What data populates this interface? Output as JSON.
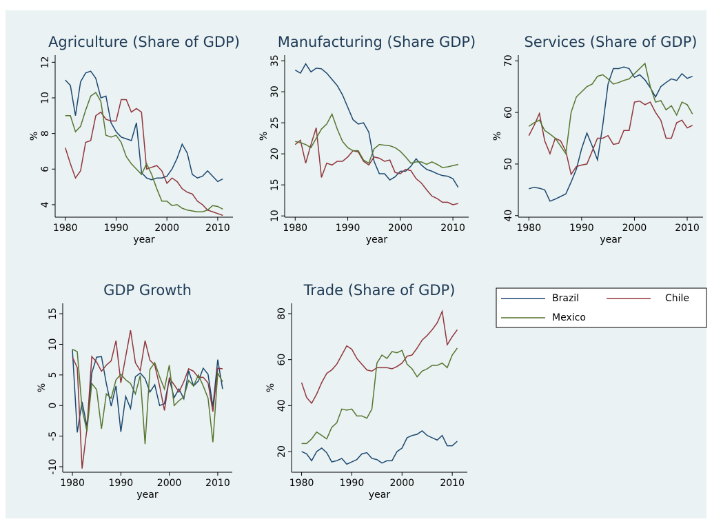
{
  "chart_data": [
    {
      "type": "line",
      "title": "Agriculture (Share of GDP)",
      "xlabel": "year",
      "ylabel": "%",
      "x": [
        1980,
        1981,
        1982,
        1983,
        1984,
        1985,
        1986,
        1987,
        1988,
        1989,
        1990,
        1991,
        1992,
        1993,
        1994,
        1995,
        1996,
        1997,
        1998,
        1999,
        2000,
        2001,
        2002,
        2003,
        2004,
        2005,
        2006,
        2007,
        2008,
        2009,
        2010,
        2011
      ],
      "xlim": [
        1978,
        2013
      ],
      "xticks": [
        1980,
        1990,
        2000,
        2010
      ],
      "ylim": [
        3.3,
        12.4
      ],
      "yticks": [
        4,
        6,
        8,
        10,
        12
      ],
      "series": [
        {
          "name": "Brazil",
          "color": "#1a476f",
          "values": [
            11.0,
            10.7,
            9.0,
            10.9,
            11.4,
            11.5,
            11.1,
            10.0,
            10.1,
            8.6,
            8.1,
            7.8,
            7.7,
            7.6,
            8.6,
            5.8,
            5.5,
            5.4,
            5.5,
            5.5,
            5.6,
            6.0,
            6.6,
            7.4,
            6.9,
            5.7,
            5.5,
            5.6,
            5.9,
            5.6,
            5.3,
            5.45
          ]
        },
        {
          "name": "Chile",
          "color": "#90353b",
          "values": [
            7.2,
            6.3,
            5.5,
            5.9,
            7.5,
            7.6,
            9.0,
            9.2,
            8.8,
            8.7,
            8.7,
            9.9,
            9.9,
            9.2,
            9.4,
            9.2,
            6.0,
            6.1,
            6.2,
            5.9,
            5.2,
            5.5,
            5.3,
            4.9,
            4.7,
            4.6,
            4.2,
            4.0,
            3.7,
            3.6,
            3.5,
            3.4
          ]
        },
        {
          "name": "Mexico",
          "color": "#55752f",
          "values": [
            9.0,
            9.0,
            8.1,
            8.4,
            9.3,
            10.1,
            10.3,
            9.8,
            7.9,
            7.8,
            7.9,
            7.5,
            6.7,
            6.3,
            6.0,
            5.7,
            6.3,
            5.7,
            4.9,
            4.2,
            4.2,
            3.95,
            4.0,
            3.8,
            3.7,
            3.65,
            3.6,
            3.6,
            3.7,
            3.95,
            3.9,
            3.75
          ]
        }
      ]
    },
    {
      "type": "line",
      "title": "Manufacturing (Share GDP)",
      "xlabel": "year",
      "ylabel": "%",
      "x": [
        1980,
        1981,
        1982,
        1983,
        1984,
        1985,
        1986,
        1987,
        1988,
        1989,
        1990,
        1991,
        1992,
        1993,
        1994,
        1995,
        1996,
        1997,
        1998,
        1999,
        2000,
        2001,
        2002,
        2003,
        2004,
        2005,
        2006,
        2007,
        2008,
        2009,
        2010,
        2011
      ],
      "xlim": [
        1978,
        2013
      ],
      "xticks": [
        1980,
        1990,
        2000,
        2010
      ],
      "ylim": [
        9.8,
        35.9
      ],
      "yticks": [
        10,
        15,
        20,
        25,
        30,
        35
      ],
      "series": [
        {
          "color": "#1a476f",
          "values": [
            33.5,
            33.0,
            34.5,
            33.2,
            33.8,
            33.7,
            33.0,
            32.0,
            31.0,
            29.5,
            27.5,
            25.5,
            24.8,
            25.0,
            23.5,
            18.8,
            16.8,
            16.8,
            15.8,
            16.3,
            17.2,
            17.2,
            18.0,
            19.2,
            18.2,
            17.5,
            17.2,
            16.8,
            16.5,
            16.4,
            16.0,
            14.6
          ]
        },
        {
          "color": "#90353b",
          "values": [
            21.5,
            22.2,
            18.5,
            21.5,
            24.2,
            16.2,
            18.5,
            18.2,
            18.8,
            18.8,
            19.5,
            20.5,
            20.3,
            18.8,
            18.2,
            19.5,
            19.3,
            18.8,
            19.0,
            17.0,
            16.8,
            17.5,
            17.3,
            16.0,
            15.3,
            14.2,
            13.2,
            12.8,
            12.2,
            12.2,
            11.8,
            12.0
          ]
        },
        {
          "color": "#55752f",
          "values": [
            22.0,
            21.8,
            21.5,
            21.0,
            22.5,
            24.0,
            24.8,
            26.4,
            24.0,
            22.0,
            21.0,
            20.5,
            20.5,
            19.0,
            18.5,
            20.8,
            21.5,
            21.4,
            21.3,
            21.0,
            20.4,
            19.5,
            18.5,
            18.7,
            18.7,
            18.3,
            18.7,
            18.3,
            17.8,
            17.9,
            18.1,
            18.3
          ]
        }
      ]
    },
    {
      "type": "line",
      "title": "Services (Share of GDP)",
      "xlabel": "year",
      "ylabel": "%",
      "x": [
        1980,
        1981,
        1982,
        1983,
        1984,
        1985,
        1986,
        1987,
        1988,
        1989,
        1990,
        1991,
        1992,
        1993,
        1994,
        1995,
        1996,
        1997,
        1998,
        1999,
        2000,
        2001,
        2002,
        2003,
        2004,
        2005,
        2006,
        2007,
        2008,
        2009,
        2010,
        2011
      ],
      "xlim": [
        1978,
        2013
      ],
      "xticks": [
        1980,
        1990,
        2000,
        2010
      ],
      "ylim": [
        39.7,
        71.1
      ],
      "yticks": [
        40,
        50,
        60,
        70
      ],
      "series": [
        {
          "color": "#1a476f",
          "values": [
            45.2,
            45.5,
            45.3,
            45.0,
            42.8,
            43.2,
            43.7,
            44.2,
            46.5,
            49.0,
            53.0,
            56.0,
            53.5,
            50.8,
            57.5,
            65.5,
            68.5,
            68.5,
            68.8,
            68.5,
            66.8,
            67.3,
            66.3,
            64.8,
            63.0,
            65.0,
            65.8,
            66.5,
            66.2,
            67.5,
            66.6,
            67.0
          ]
        },
        {
          "color": "#90353b",
          "values": [
            55.5,
            57.5,
            59.8,
            54.5,
            52.0,
            55.0,
            54.5,
            52.5,
            48.0,
            49.5,
            49.8,
            50.0,
            52.5,
            55.0,
            55.0,
            55.5,
            53.8,
            54.0,
            56.5,
            56.5,
            62.0,
            62.2,
            61.5,
            62.0,
            60.0,
            58.5,
            55.0,
            55.0,
            58.0,
            58.5,
            57.0,
            57.5
          ]
        },
        {
          "color": "#55752f",
          "values": [
            57.3,
            58.0,
            58.5,
            56.5,
            55.8,
            55.0,
            53.5,
            52.0,
            60.0,
            63.0,
            64.0,
            65.0,
            65.5,
            67.0,
            67.3,
            66.5,
            65.5,
            65.8,
            66.2,
            66.5,
            67.5,
            68.5,
            69.5,
            65.0,
            62.0,
            62.3,
            60.5,
            61.3,
            59.5,
            62.0,
            61.5,
            59.7
          ]
        }
      ]
    },
    {
      "type": "line",
      "title": "GDP Growth",
      "xlabel": "year",
      "ylabel": "%",
      "x": [
        1980,
        1981,
        1982,
        1983,
        1984,
        1985,
        1986,
        1987,
        1988,
        1989,
        1990,
        1991,
        1992,
        1993,
        1994,
        1995,
        1996,
        1997,
        1998,
        1999,
        2000,
        2001,
        2002,
        2003,
        2004,
        2005,
        2006,
        2007,
        2008,
        2009,
        2010,
        2011
      ],
      "xlim": [
        1978,
        2013
      ],
      "xticks": [
        1980,
        1990,
        2000,
        2010
      ],
      "ylim": [
        -10.9,
        16.7
      ],
      "yticks": [
        -10,
        -5,
        0,
        5,
        10,
        15
      ],
      "series": [
        {
          "color": "#1a476f",
          "values": [
            9.1,
            -4.4,
            0.6,
            -3.4,
            5.3,
            7.9,
            8.0,
            3.6,
            -0.1,
            3.2,
            -4.3,
            1.5,
            -0.5,
            4.7,
            5.3,
            4.4,
            2.2,
            3.4,
            0.0,
            0.3,
            4.3,
            1.3,
            2.7,
            1.1,
            5.7,
            3.2,
            4.0,
            6.1,
            5.1,
            -0.2,
            7.5,
            2.7
          ]
        },
        {
          "color": "#90353b",
          "values": [
            7.9,
            6.2,
            -10.3,
            -3.8,
            8.0,
            7.1,
            5.6,
            6.6,
            7.3,
            10.6,
            3.7,
            8.0,
            12.3,
            7.0,
            5.7,
            10.6,
            7.4,
            6.6,
            3.2,
            -0.8,
            4.5,
            3.4,
            2.2,
            3.9,
            6.0,
            5.6,
            4.6,
            4.6,
            3.7,
            -1.0,
            6.1,
            6.0
          ]
        },
        {
          "color": "#55752f",
          "values": [
            9.2,
            8.8,
            -0.6,
            -4.2,
            3.6,
            2.6,
            -3.8,
            1.9,
            1.2,
            4.2,
            5.1,
            4.2,
            3.6,
            1.9,
            4.9,
            -6.3,
            5.9,
            7.0,
            4.7,
            2.7,
            6.6,
            0.0,
            0.8,
            1.4,
            4.1,
            3.2,
            5.0,
            3.2,
            1.2,
            -6.0,
            5.3,
            3.9
          ]
        }
      ]
    },
    {
      "type": "line",
      "title": "Trade (Share of GDP)",
      "xlabel": "year",
      "ylabel": "%",
      "x": [
        1980,
        1981,
        1982,
        1983,
        1984,
        1985,
        1986,
        1987,
        1988,
        1989,
        1990,
        1991,
        1992,
        1993,
        1994,
        1995,
        1996,
        1997,
        1998,
        1999,
        2000,
        2001,
        2002,
        2003,
        2004,
        2005,
        2006,
        2007,
        2008,
        2009,
        2010,
        2011
      ],
      "xlim": [
        1978,
        2013
      ],
      "xticks": [
        1980,
        1990,
        2000,
        2010
      ],
      "ylim": [
        11,
        84.5
      ],
      "yticks": [
        20,
        40,
        60,
        80
      ],
      "series": [
        {
          "color": "#1a476f",
          "values": [
            20,
            19,
            16,
            20,
            21.5,
            19.5,
            15.5,
            16,
            17,
            14.5,
            15.5,
            16.5,
            19,
            19.5,
            17,
            16.5,
            15,
            16,
            16,
            20,
            21.5,
            26,
            27,
            27.5,
            29,
            27,
            26,
            25,
            27,
            22.5,
            22.5,
            24.5
          ]
        },
        {
          "color": "#90353b",
          "values": [
            50,
            43.5,
            41,
            45,
            50,
            54,
            55.5,
            58,
            62,
            66,
            64.5,
            60.5,
            58,
            55.5,
            55,
            56.5,
            56.5,
            56.5,
            56,
            57,
            58.5,
            61.5,
            62,
            65,
            68.5,
            70.5,
            73,
            76,
            81,
            66.5,
            70,
            73
          ]
        },
        {
          "color": "#55752f",
          "values": [
            23.5,
            23.5,
            25.5,
            28.5,
            27,
            25.5,
            30.5,
            32.5,
            38.5,
            38,
            38.5,
            35.5,
            35.5,
            34.5,
            38.5,
            58.5,
            62,
            60.5,
            63.5,
            63,
            64,
            58,
            56,
            52.5,
            55,
            56,
            57.5,
            57.5,
            58.5,
            56.5,
            62,
            65
          ]
        }
      ]
    }
  ]
}
